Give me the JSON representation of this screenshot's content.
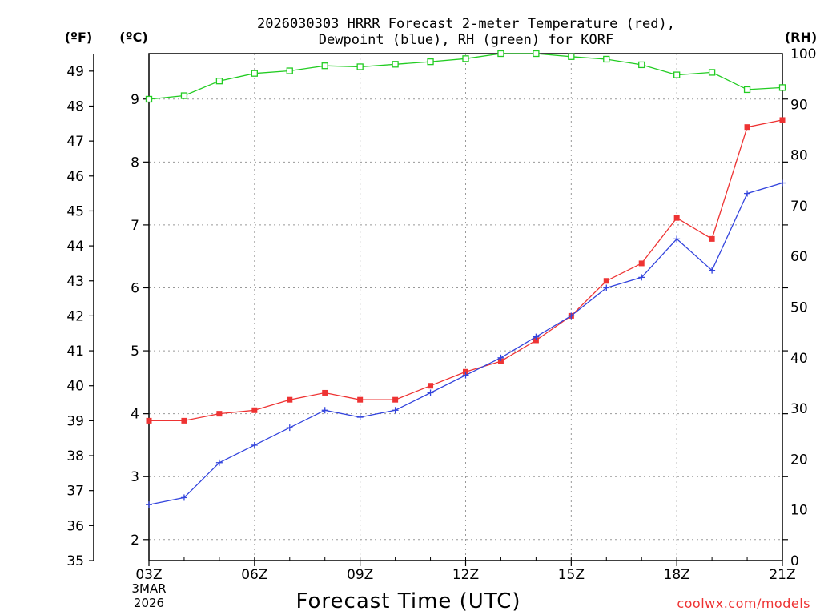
{
  "chart_data": {
    "type": "line",
    "title_line1": "2026030303 HRRR Forecast 2-meter Temperature (red),",
    "title_line2": "Dewpoint (blue), RH (green) for KORF",
    "left_outer_axis_label": "(ºF)",
    "left_inner_axis_label": "(ºC)",
    "right_axis_label": "(RH)",
    "xlabel": "Forecast Time (UTC)",
    "date_label_line1": "3MAR",
    "date_label_line2": "2026",
    "credit": "coolwx.com/models",
    "x_hours": [
      3,
      4,
      5,
      6,
      7,
      8,
      9,
      10,
      11,
      12,
      13,
      14,
      15,
      16,
      17,
      18,
      19,
      20,
      21
    ],
    "x_ticks": [
      {
        "h": 3,
        "label": "03Z"
      },
      {
        "h": 6,
        "label": "06Z"
      },
      {
        "h": 9,
        "label": "09Z"
      },
      {
        "h": 12,
        "label": "12Z"
      },
      {
        "h": 15,
        "label": "15Z"
      },
      {
        "h": 18,
        "label": "18Z"
      },
      {
        "h": 21,
        "label": "21Z"
      }
    ],
    "f_range": [
      35,
      49.5
    ],
    "f_ticks": [
      "35",
      "36",
      "37",
      "38",
      "39",
      "40",
      "41",
      "42",
      "43",
      "44",
      "45",
      "46",
      "47",
      "48",
      "49"
    ],
    "c_ticks": [
      "2",
      "3",
      "4",
      "5",
      "6",
      "7",
      "8",
      "9"
    ],
    "rh_range": [
      0,
      100
    ],
    "rh_ticks": [
      "0",
      "10",
      "20",
      "30",
      "40",
      "50",
      "60",
      "70",
      "80",
      "90",
      "100"
    ],
    "colors": {
      "temperature": "#ee3333",
      "dewpoint": "#3344dd",
      "rh": "#22cc22",
      "grid": "#999999"
    },
    "series": [
      {
        "name": "Temperature (°F)",
        "key": "temperature",
        "axis": "F",
        "values": [
          39.0,
          39.0,
          39.2,
          39.3,
          39.6,
          39.8,
          39.6,
          39.6,
          40.0,
          40.4,
          40.7,
          41.3,
          42.0,
          43.0,
          43.5,
          44.8,
          44.2,
          47.4,
          47.6
        ]
      },
      {
        "name": "Dewpoint (°F)",
        "key": "dewpoint",
        "axis": "F",
        "values": [
          36.6,
          36.8,
          37.8,
          38.3,
          38.8,
          39.3,
          39.1,
          39.3,
          39.8,
          40.3,
          40.8,
          41.4,
          42.0,
          42.8,
          43.1,
          44.2,
          43.3,
          45.5,
          45.8
        ]
      },
      {
        "name": "RH (%)",
        "key": "rh",
        "axis": "RH",
        "values": [
          91.0,
          91.7,
          94.6,
          96.1,
          96.6,
          97.6,
          97.4,
          97.9,
          98.4,
          99.0,
          100.0,
          100.0,
          99.4,
          98.9,
          97.8,
          95.8,
          96.3,
          92.9,
          93.3
        ]
      }
    ]
  }
}
